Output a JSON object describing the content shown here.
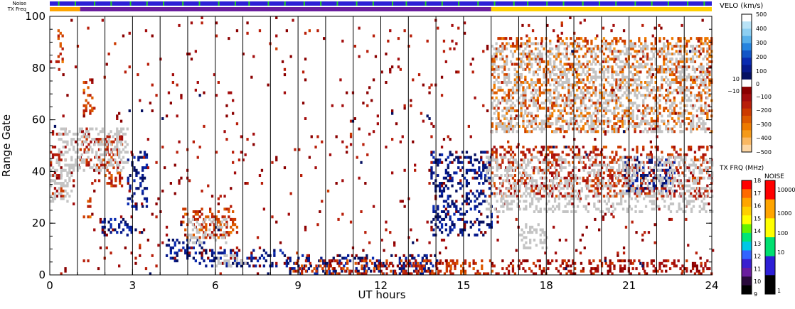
{
  "chart_data": {
    "type": "heatmap",
    "title": "",
    "xlabel": "UT hours",
    "ylabel": "Range Gate",
    "xlim": [
      0,
      24
    ],
    "ylim": [
      0,
      100
    ],
    "x_ticks": [
      "0",
      "3",
      "6",
      "9",
      "12",
      "15",
      "18",
      "21",
      "24"
    ],
    "y_ticks": [
      "0",
      "20",
      "40",
      "60",
      "80",
      "100"
    ],
    "hour_lines": [
      1,
      2,
      3,
      4,
      5,
      6,
      7,
      8,
      9,
      10,
      11,
      12,
      13,
      14,
      15,
      16,
      17,
      18,
      19,
      20,
      21,
      22,
      23
    ],
    "grid": false,
    "top_strips": [
      {
        "label": "Noise",
        "segments": [
          {
            "start": 0,
            "end": 24,
            "color": "#2d1fd6"
          }
        ],
        "flecks": [
          0.3,
          0.9,
          1.6,
          2.2,
          2.9,
          3.5,
          4.1,
          4.8,
          5.4,
          6.1,
          6.7,
          7.2,
          7.9,
          8.5,
          9.2,
          9.8,
          10.4,
          11.1,
          11.7,
          12.4,
          12.9,
          13.6,
          14.2,
          14.8,
          15.5,
          16.1,
          16.8,
          17.3,
          18.0,
          18.6,
          19.3,
          19.9,
          20.5,
          21.2,
          21.8,
          22.4,
          23.1,
          23.7
        ],
        "fleck_color": "#22d11e"
      },
      {
        "label": "TX Freq",
        "segments": [
          {
            "start": 0,
            "end": 1.1,
            "color": "#ffa500"
          },
          {
            "start": 1.1,
            "end": 16,
            "color": "#6a1d9e"
          },
          {
            "start": 16,
            "end": 24,
            "color": "#ffd000"
          }
        ]
      }
    ],
    "series": [
      {
        "type": "velocity_region",
        "velocity": -120,
        "t": [
          0,
          0.5
        ],
        "g": [
          30,
          56
        ],
        "density": 0.5
      },
      {
        "type": "velocity_region",
        "velocity": -200,
        "t": [
          0.2,
          0.5
        ],
        "g": [
          82,
          96
        ],
        "density": 0.5
      },
      {
        "type": "velocity_region",
        "velocity": -120,
        "t": [
          1,
          1.5
        ],
        "g": [
          42,
          57
        ],
        "density": 0.5
      },
      {
        "type": "velocity_region",
        "velocity": -200,
        "t": [
          1.2,
          1.5
        ],
        "g": [
          22,
          30
        ],
        "density": 0.5
      },
      {
        "type": "velocity_region",
        "velocity": -200,
        "t": [
          1.2,
          1.5
        ],
        "g": [
          60,
          76
        ],
        "density": 0.5
      },
      {
        "type": "velocity_region",
        "velocity": -150,
        "t": [
          1.6,
          2.6
        ],
        "g": [
          34,
          54
        ],
        "density": 0.5
      },
      {
        "type": "velocity_region",
        "velocity": 80,
        "t": [
          2.8,
          3.5
        ],
        "g": [
          25,
          48
        ],
        "density": 0.5
      },
      {
        "type": "velocity_region",
        "velocity": 80,
        "t": [
          1.8,
          3.2
        ],
        "g": [
          15,
          22
        ],
        "density": 0.5
      },
      {
        "type": "velocity_region",
        "velocity": -200,
        "t": [
          4.8,
          6.8
        ],
        "g": [
          14,
          26
        ],
        "density": 0.5
      },
      {
        "type": "velocity_region",
        "velocity": -200,
        "t": [
          6,
          6.6
        ],
        "g": [
          15,
          22
        ],
        "density": 0.5
      },
      {
        "type": "velocity_region",
        "velocity": 80,
        "t": [
          4.2,
          5.6
        ],
        "g": [
          5,
          14
        ],
        "density": 0.5
      },
      {
        "type": "velocity_region",
        "velocity": 60,
        "t": [
          5.4,
          8.6
        ],
        "g": [
          3,
          10
        ],
        "density": 0.5
      },
      {
        "type": "velocity_region",
        "velocity": 60,
        "t": [
          8.6,
          14
        ],
        "g": [
          0,
          8
        ],
        "density": 0.5
      },
      {
        "type": "velocity_region",
        "velocity": -180,
        "t": [
          8.8,
          16
        ],
        "g": [
          0,
          6
        ],
        "density": 0.5
      },
      {
        "type": "velocity_region",
        "velocity": 70,
        "t": [
          13.8,
          16
        ],
        "g": [
          15,
          48
        ],
        "density": 0.5
      },
      {
        "type": "velocity_region",
        "velocity": -150,
        "t": [
          16,
          24
        ],
        "g": [
          30,
          50
        ],
        "density": 0.5
      },
      {
        "type": "velocity_region",
        "velocity": -100,
        "t": [
          16,
          24
        ],
        "g": [
          0,
          6
        ],
        "density": 0.5
      },
      {
        "type": "velocity_region",
        "velocity": 80,
        "t": [
          20.8,
          22.6
        ],
        "g": [
          32,
          46
        ],
        "density": 0.5
      },
      {
        "type": "velocity_region",
        "velocity": -250,
        "t": [
          16,
          24
        ],
        "g": [
          55,
          92
        ],
        "density": 0.5
      },
      {
        "type": "velocity_region",
        "velocity": -80,
        "t": [
          0,
          24
        ],
        "g": [
          0,
          100
        ],
        "density": 0.5
      },
      {
        "type": "ground_scatter",
        "t": [
          0,
          0.8
        ],
        "g": [
          28,
          45
        ],
        "density": 0.5
      },
      {
        "type": "ground_scatter",
        "t": [
          0.3,
          2.8
        ],
        "g": [
          40,
          57
        ],
        "density": 0.5
      },
      {
        "type": "ground_scatter",
        "t": [
          5,
          6.4
        ],
        "g": [
          12,
          22
        ],
        "density": 0.5
      },
      {
        "type": "ground_scatter",
        "t": [
          6,
          7.2
        ],
        "g": [
          3,
          8
        ],
        "density": 0.5
      },
      {
        "type": "ground_scatter",
        "t": [
          15.8,
          24
        ],
        "g": [
          24,
          46
        ],
        "density": 0.5
      },
      {
        "type": "ground_scatter",
        "t": [
          17,
          18
        ],
        "g": [
          10,
          20
        ],
        "density": 0.5
      },
      {
        "type": "ground_scatter",
        "t": [
          16,
          23.8
        ],
        "g": [
          55,
          90
        ],
        "density": 0.5
      }
    ]
  },
  "velo_bar": {
    "title": "VELO (km/s)",
    "ticks": [
      "500",
      "400",
      "300",
      "200",
      "100",
      "0",
      "10",
      "−10",
      "−100",
      "−200",
      "−300",
      "−400",
      "−500"
    ],
    "colors": [
      "#ffffff",
      "#b9e3f7",
      "#8dcff2",
      "#58b0ea",
      "#2684df",
      "#1255c7",
      "#0a2bb0",
      "#071a8c",
      "#051062",
      "#ffffff",
      "#8a0000",
      "#a30d0d",
      "#b81f0a",
      "#cc3a00",
      "#dd5a00",
      "#ee7a00",
      "#f59a1a",
      "#fab862",
      "#fdd6a3"
    ]
  },
  "freq_bar": {
    "title": "TX FRQ (MHz)",
    "ticks": [
      "18",
      "17",
      "16",
      "15",
      "14",
      "13",
      "12",
      "11",
      "10",
      "9"
    ],
    "colors": [
      "#ff0000",
      "#ff6a00",
      "#ffa500",
      "#ffd000",
      "#ffff00",
      "#64f200",
      "#00e676",
      "#00c8e6",
      "#3264ff",
      "#3a1fd0",
      "#6a1d9e",
      "#2a0a3c",
      "#000000"
    ]
  },
  "noise_bar": {
    "title": "NOISE",
    "ticks": [
      "10000",
      "1000",
      "100",
      "10",
      "1"
    ],
    "colors": [
      "#ff0000",
      "#ffa500",
      "#ffff00",
      "#00e070",
      "#2d1fd6",
      "#000000"
    ]
  }
}
